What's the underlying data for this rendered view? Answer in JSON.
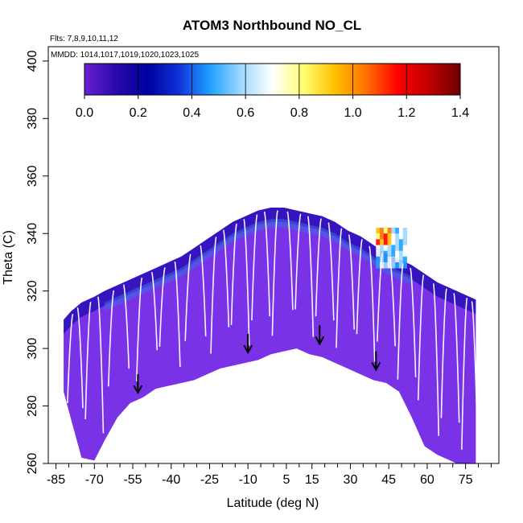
{
  "chart_data": {
    "type": "heatmap",
    "title": "ATOM3 Northbound NO_CL",
    "subtitle_flights": "Flts: 7,8,9,10,11,12",
    "subtitle_dates": "MMDD: 1014,1017,1019,1020,1023,1025",
    "xlabel": "Latitude (deg N)",
    "ylabel": "Theta (C)",
    "xlim": [
      -88,
      88
    ],
    "ylim": [
      260,
      405
    ],
    "x_ticks": [
      -85,
      -70,
      -55,
      -40,
      -25,
      -10,
      5,
      15,
      30,
      45,
      60,
      75
    ],
    "x_minor_ticks": [
      -80,
      -75,
      -65,
      -60,
      -50,
      -45,
      -35,
      -30,
      -20,
      -15,
      -5,
      0,
      10,
      20,
      25,
      35,
      40,
      50,
      55,
      65,
      70,
      80,
      85
    ],
    "y_ticks": [
      260,
      280,
      300,
      320,
      340,
      360,
      380,
      400
    ],
    "colorbar": {
      "range": [
        0.0,
        1.4
      ],
      "ticks": [
        "0.0",
        "0.2",
        "0.4",
        "0.6",
        "0.8",
        "1.0",
        "1.2",
        "1.4"
      ],
      "colors": [
        "#6a1fd6",
        "#2a0aa8",
        "#0000a0",
        "#1030d8",
        "#1fa0ff",
        "#9fd8ff",
        "#ffffff",
        "#ffff70",
        "#ffc000",
        "#ff7000",
        "#ff0000",
        "#c00000",
        "#700000"
      ]
    },
    "data_envelope": {
      "latitude": [
        -82,
        -79,
        -75,
        -70,
        -66,
        -61,
        -56,
        -51,
        -46,
        -41,
        -36,
        -31,
        -26,
        -21,
        -16,
        -11,
        -6,
        -1,
        4,
        9,
        14,
        19,
        24,
        29,
        34,
        39,
        44,
        49,
        54,
        59,
        64,
        69,
        74,
        79
      ],
      "theta_top": [
        310,
        313,
        316,
        318,
        320,
        322,
        324,
        326,
        328,
        330,
        332,
        335,
        338,
        341,
        344,
        346,
        348,
        349,
        349,
        348,
        347,
        346,
        344,
        341,
        339,
        336,
        333,
        331,
        329,
        326,
        323,
        321,
        319,
        317
      ],
      "theta_bottom": [
        285,
        275,
        262,
        261,
        268,
        276,
        281,
        283,
        286,
        287,
        288,
        289,
        291,
        293,
        294,
        295,
        296,
        298,
        299,
        300,
        298,
        297,
        295,
        293,
        291,
        289,
        288,
        285,
        276,
        266,
        263,
        261,
        259,
        258
      ]
    },
    "background_value": 0.02,
    "high_value_region": {
      "latitude": [
        40,
        52
      ],
      "theta": [
        328,
        342
      ],
      "max_value": 1.3
    },
    "arrows": [
      {
        "latitude": -53,
        "theta": 286
      },
      {
        "latitude": -10,
        "theta": 300
      },
      {
        "latitude": 18,
        "theta": 303
      },
      {
        "latitude": 40,
        "theta": 294
      }
    ]
  }
}
